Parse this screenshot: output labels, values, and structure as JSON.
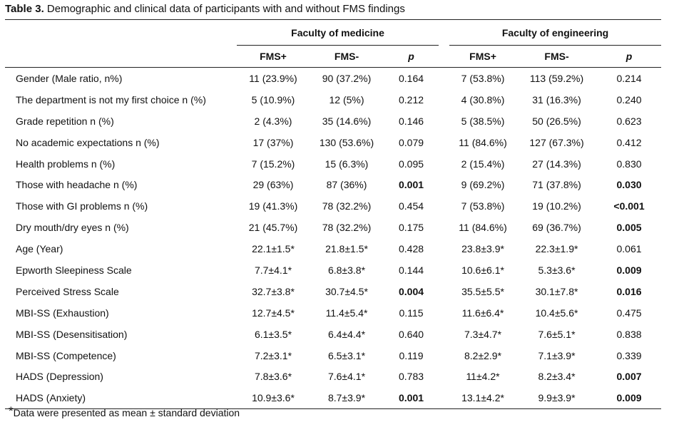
{
  "caption": {
    "label": "Table 3.",
    "text": " Demographic and clinical data of participants with and without FMS findings"
  },
  "table": {
    "groups": [
      "Faculty of medicine",
      "Faculty of engineering"
    ],
    "subheaders": [
      "FMS+",
      "FMS-",
      "p",
      "FMS+",
      "FMS-",
      "p"
    ],
    "rows": [
      {
        "label": "Gender (Male ratio, n%)",
        "cells": [
          "11 (23.9%)",
          "90 (37.2%)",
          "0.164",
          "7 (53.8%)",
          "113 (59.2%)",
          "0.214"
        ],
        "bold": [
          false,
          false,
          false,
          false,
          false,
          false
        ]
      },
      {
        "label": "The department is not my first choice n (%)",
        "cells": [
          "5 (10.9%)",
          "12 (5%)",
          "0.212",
          "4 (30.8%)",
          "31 (16.3%)",
          "0.240"
        ],
        "bold": [
          false,
          false,
          false,
          false,
          false,
          false
        ]
      },
      {
        "label": "Grade repetition n (%)",
        "cells": [
          "2 (4.3%)",
          "35 (14.6%)",
          "0.146",
          "5 (38.5%)",
          "50 (26.5%)",
          "0.623"
        ],
        "bold": [
          false,
          false,
          false,
          false,
          false,
          false
        ]
      },
      {
        "label": "No academic expectations n (%)",
        "cells": [
          "17 (37%)",
          "130 (53.6%)",
          "0.079",
          "11 (84.6%)",
          "127 (67.3%)",
          "0.412"
        ],
        "bold": [
          false,
          false,
          false,
          false,
          false,
          false
        ]
      },
      {
        "label": "Health problems n (%)",
        "cells": [
          "7 (15.2%)",
          "15 (6.3%)",
          "0.095",
          "2 (15.4%)",
          "27 (14.3%)",
          "0.830"
        ],
        "bold": [
          false,
          false,
          false,
          false,
          false,
          false
        ]
      },
      {
        "label": "Those with headache n (%)",
        "cells": [
          "29 (63%)",
          "87 (36%)",
          "0.001",
          "9 (69.2%)",
          "71 (37.8%)",
          "0.030"
        ],
        "bold": [
          false,
          false,
          true,
          false,
          false,
          true
        ]
      },
      {
        "label": "Those with GI problems n (%)",
        "cells": [
          "19 (41.3%)",
          "78 (32.2%)",
          "0.454",
          "7 (53.8%)",
          "19 (10.2%)",
          "<0.001"
        ],
        "bold": [
          false,
          false,
          false,
          false,
          false,
          true
        ]
      },
      {
        "label": "Dry mouth/dry eyes n (%)",
        "cells": [
          "21 (45.7%)",
          "78 (32.2%)",
          "0.175",
          "11 (84.6%)",
          "69 (36.7%)",
          "0.005"
        ],
        "bold": [
          false,
          false,
          false,
          false,
          false,
          true
        ]
      },
      {
        "label": "Age (Year)",
        "cells": [
          "22.1±1.5*",
          "21.8±1.5*",
          "0.428",
          "23.8±3.9*",
          "22.3±1.9*",
          "0.061"
        ],
        "bold": [
          false,
          false,
          false,
          false,
          false,
          false
        ]
      },
      {
        "label": "Epworth Sleepiness Scale",
        "cells": [
          "7.7±4.1*",
          "6.8±3.8*",
          "0.144",
          "10.6±6.1*",
          "5.3±3.6*",
          "0.009"
        ],
        "bold": [
          false,
          false,
          false,
          false,
          false,
          true
        ]
      },
      {
        "label": "Perceived Stress Scale",
        "cells": [
          "32.7±3.8*",
          "30.7±4.5*",
          "0.004",
          "35.5±5.5*",
          "30.1±7.8*",
          "0.016"
        ],
        "bold": [
          false,
          false,
          true,
          false,
          false,
          true
        ]
      },
      {
        "label": "MBI-SS (Exhaustion)",
        "cells": [
          "12.7±4.5*",
          "11.4±5.4*",
          "0.115",
          "11.6±6.4*",
          "10.4±5.6*",
          "0.475"
        ],
        "bold": [
          false,
          false,
          false,
          false,
          false,
          false
        ]
      },
      {
        "label": "MBI-SS (Desensitisation)",
        "cells": [
          "6.1±3.5*",
          "6.4±4.4*",
          "0.640",
          "7.3±4.7*",
          "7.6±5.1*",
          "0.838"
        ],
        "bold": [
          false,
          false,
          false,
          false,
          false,
          false
        ]
      },
      {
        "label": "MBI-SS (Competence)",
        "cells": [
          "7.2±3.1*",
          "6.5±3.1*",
          "0.119",
          "8.2±2.9*",
          "7.1±3.9*",
          "0.339"
        ],
        "bold": [
          false,
          false,
          false,
          false,
          false,
          false
        ]
      },
      {
        "label": "HADS (Depression)",
        "cells": [
          "7.8±3.6*",
          "7.6±4.1*",
          "0.783",
          "11±4.2*",
          "8.2±3.4*",
          "0.007"
        ],
        "bold": [
          false,
          false,
          false,
          false,
          false,
          true
        ]
      },
      {
        "label": "HADS (Anxiety)",
        "cells": [
          "10.9±3.6*",
          "8.7±3.9*",
          "0.001",
          "13.1±4.2*",
          "9.9±3.9*",
          "0.009"
        ],
        "bold": [
          false,
          false,
          true,
          false,
          false,
          true
        ]
      }
    ]
  },
  "footnote": {
    "symbol": "*",
    "text": "Data were presented as mean ± standard deviation"
  }
}
